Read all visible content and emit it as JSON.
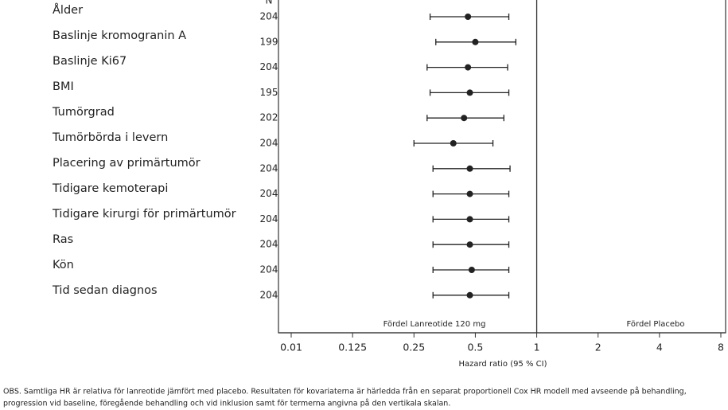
{
  "chart_data": {
    "type": "forest",
    "n_header": "N",
    "categories": [
      "Ålder",
      "Baslinje kromogranin A",
      "Baslinje Ki67",
      "BMI",
      "Tumörgrad",
      "Tumörbörda i levern",
      "Placering av primärtumör",
      "Tidigare kemoterapi",
      "Tidigare kirurgi för primärtumör",
      "Ras",
      "Kön",
      "Tid sedan diagnos"
    ],
    "n": [
      204,
      199,
      204,
      195,
      202,
      204,
      204,
      204,
      204,
      204,
      204,
      204
    ],
    "series": [
      {
        "color": "#222222",
        "values": [
          0.46,
          0.5,
          0.46,
          0.47,
          0.44,
          0.39,
          0.47,
          0.47,
          0.47,
          0.47,
          0.48,
          0.47
        ],
        "lower": [
          0.3,
          0.32,
          0.29,
          0.3,
          0.29,
          0.25,
          0.31,
          0.31,
          0.31,
          0.31,
          0.31,
          0.31
        ],
        "upper": [
          0.73,
          0.79,
          0.72,
          0.73,
          0.69,
          0.61,
          0.74,
          0.73,
          0.73,
          0.73,
          0.73,
          0.73
        ]
      }
    ],
    "x_label": "Hazard ratio (95 % CI)",
    "xscale": "log",
    "xticks": [
      0.01,
      0.125,
      0.25,
      0.5,
      1,
      2,
      4,
      8
    ],
    "reference": 1,
    "annotations": [
      "Fördel Lanreotide  120 mg",
      "Fördel Placebo"
    ],
    "footnote": [
      "OBS. Samtliga HR är relativa för lanreotide jämfört med placebo. Resultaten för kovariaterna är härledda från en separat proportionell Cox HR modell med avseende på behandling,",
      "progression vid baseline, föregående behandling och vid inklusion samt för termerna angivna på den vertikala skalan."
    ]
  }
}
